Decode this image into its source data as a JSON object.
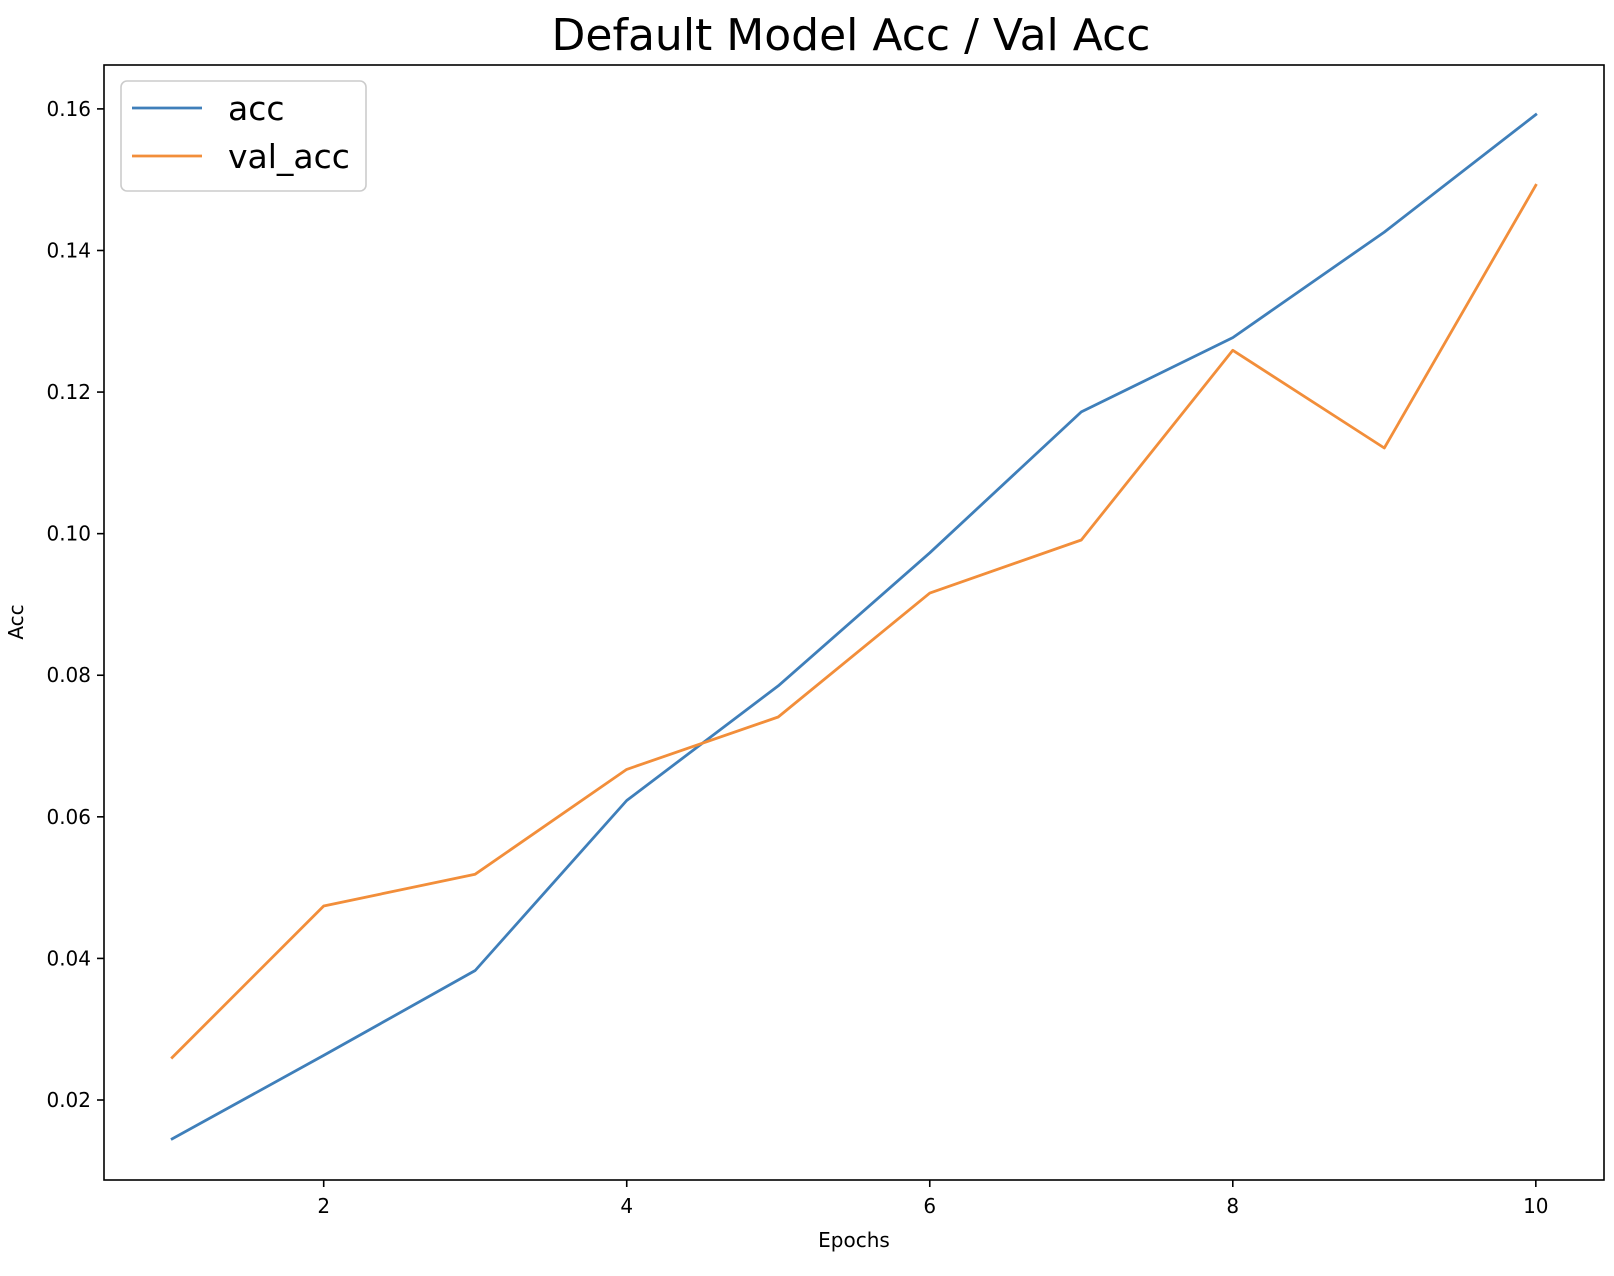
{
  "chart_data": {
    "type": "line",
    "title": "Default Model Acc / Val Acc",
    "xlabel": "Epochs",
    "ylabel": "Acc",
    "x": [
      1,
      2,
      3,
      4,
      5,
      6,
      7,
      8,
      9,
      10
    ],
    "xlim": [
      0.55,
      10.45
    ],
    "ylim": [
      0.0087,
      0.1662
    ],
    "xticks": [
      2,
      4,
      6,
      8,
      10
    ],
    "xtick_labels": [
      "2",
      "4",
      "6",
      "8",
      "10"
    ],
    "yticks": [
      0.02,
      0.04,
      0.06,
      0.08,
      0.1,
      0.12,
      0.14,
      0.16
    ],
    "ytick_labels": [
      "0.02",
      "0.04",
      "0.06",
      "0.08",
      "0.10",
      "0.12",
      "0.14",
      "0.16"
    ],
    "grid": false,
    "legend_position": "top-left",
    "series": [
      {
        "name": "acc",
        "color": "#3f7fba",
        "values": [
          0.0145,
          0.0263,
          0.0383,
          0.0623,
          0.0785,
          0.0973,
          0.1172,
          0.1277,
          0.1426,
          0.1592
        ]
      },
      {
        "name": "val_acc",
        "color": "#f28e3a",
        "values": [
          0.026,
          0.0474,
          0.0519,
          0.0667,
          0.0741,
          0.0916,
          0.0991,
          0.1259,
          0.1121,
          0.1492
        ]
      }
    ]
  }
}
